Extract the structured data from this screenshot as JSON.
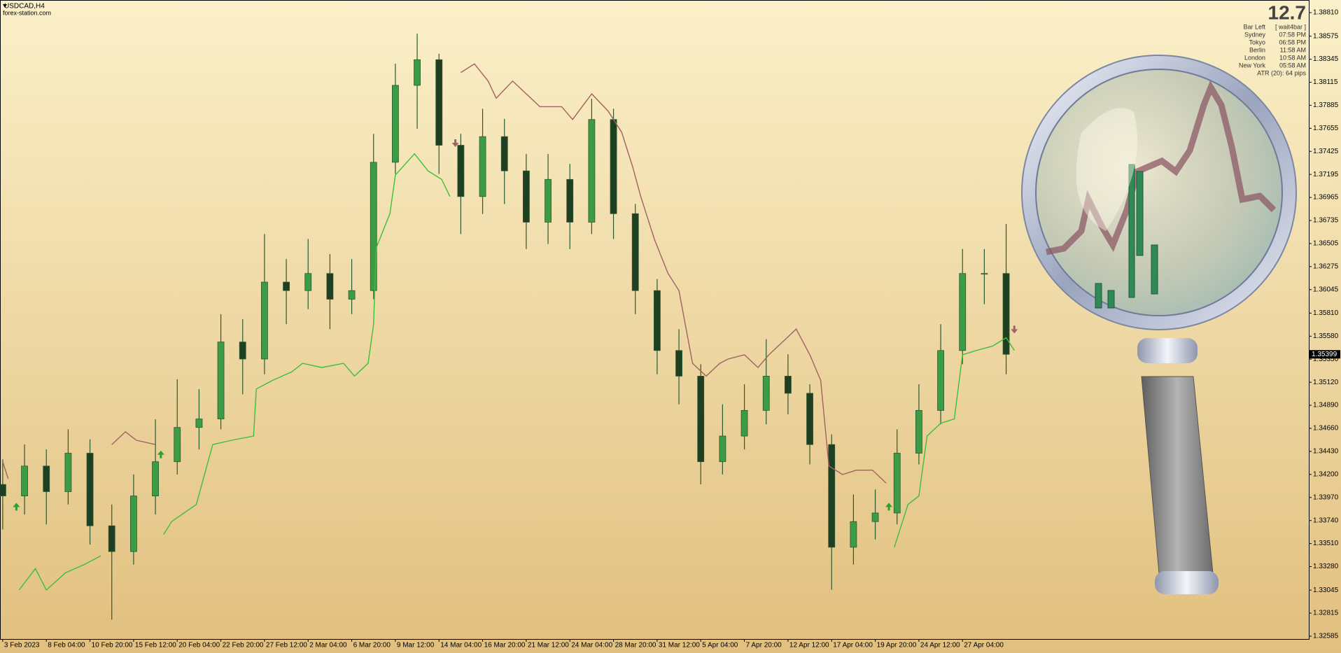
{
  "chart_data": {
    "type": "candlestick",
    "title": "USDCAD,H4",
    "subtitle": "forex-station.com",
    "xlim": [
      -1,
      479
    ],
    "ylim": [
      1.32557,
      1.38915
    ],
    "xticks": [
      {
        "value": 0,
        "label": "3 Feb 2023"
      },
      {
        "value": 16,
        "label": "8 Feb 04:00"
      },
      {
        "value": 32,
        "label": "10 Feb 20:00"
      },
      {
        "value": 48,
        "label": "15 Feb 12:00"
      },
      {
        "value": 64,
        "label": "20 Feb 04:00"
      },
      {
        "value": 80,
        "label": "22 Feb 20:00"
      },
      {
        "value": 96,
        "label": "27 Feb 12:00"
      },
      {
        "value": 112,
        "label": "2 Mar 04:00"
      },
      {
        "value": 128,
        "label": "6 Mar 20:00"
      },
      {
        "value": 144,
        "label": "9 Mar 12:00"
      },
      {
        "value": 160,
        "label": "14 Mar 04:00"
      },
      {
        "value": 176,
        "label": "16 Mar 20:00"
      },
      {
        "value": 192,
        "label": "21 Mar 12:00"
      },
      {
        "value": 208,
        "label": "24 Mar 04:00"
      },
      {
        "value": 224,
        "label": "28 Mar 20:00"
      },
      {
        "value": 240,
        "label": "31 Mar 12:00"
      },
      {
        "value": 256,
        "label": "5 Apr 04:00"
      },
      {
        "value": 272,
        "label": "7 Apr 20:00"
      },
      {
        "value": 288,
        "label": "12 Apr 12:00"
      },
      {
        "value": 304,
        "label": "17 Apr 04:00"
      },
      {
        "value": 320,
        "label": "19 Apr 20:00"
      },
      {
        "value": 336,
        "label": "24 Apr 12:00"
      },
      {
        "value": 352,
        "label": "27 Apr 04:00"
      }
    ],
    "yticks": [
      {
        "value": 1.3881,
        "label": "1.38810"
      },
      1.38575,
      1.38345,
      1.38115,
      1.37885,
      1.37655,
      1.37425,
      1.37195,
      1.36965,
      1.36735,
      1.36505,
      1.36275,
      1.36045,
      {
        "value": 1.3581,
        "label": "1.35810"
      },
      {
        "value": 1.3558,
        "label": "1.35580"
      },
      {
        "value": 1.3535,
        "label": "1.35350"
      },
      {
        "value": 1.3512,
        "label": "1.35120"
      },
      {
        "value": 1.3489,
        "label": "1.34890"
      },
      {
        "value": 1.3466,
        "label": "1.34660"
      },
      {
        "value": 1.3443,
        "label": "1.34430"
      },
      {
        "value": 1.342,
        "label": "1.34200"
      },
      {
        "value": 1.3397,
        "label": "1.33970"
      },
      {
        "value": 1.3374,
        "label": "1.33740"
      },
      {
        "value": 1.3351,
        "label": "1.33510"
      },
      {
        "value": 1.3328,
        "label": "1.33280"
      },
      1.33045,
      1.32815,
      1.32585
    ],
    "grid": false,
    "last_price": 1.35399,
    "candles": {
      "up_color": "#3c9c46",
      "down_color": "#1f3f22",
      "wick_color": "#2b5a2e",
      "x": [
        0,
        8,
        16,
        24,
        32,
        40,
        48,
        56,
        64,
        72,
        80,
        88,
        96,
        104,
        112,
        120,
        128,
        136,
        144,
        152,
        160,
        168,
        176,
        184,
        192,
        200,
        208,
        216,
        224,
        232,
        240,
        248,
        256,
        264,
        272,
        280,
        288,
        296,
        304,
        312,
        320,
        328,
        336,
        344,
        352,
        360,
        368
      ],
      "open": [
        1.341,
        1.33985,
        1.34284,
        1.34028,
        1.34412,
        1.33687,
        1.3343,
        1.33985,
        1.34327,
        1.34669,
        1.34754,
        1.35522,
        1.35352,
        1.3612,
        1.36035,
        1.36206,
        1.35949,
        1.36035,
        1.37316,
        1.38084,
        1.3834,
        1.37486,
        1.36974,
        1.37572,
        1.3723,
        1.36718,
        1.37145,
        1.36718,
        1.37743,
        1.36803,
        1.36035,
        1.35437,
        1.35181,
        1.34327,
        1.34583,
        1.34839,
        1.35181,
        1.3501,
        1.34498,
        1.33473,
        1.33729,
        1.33815,
        1.34412,
        1.34839,
        1.35437,
        1.36206,
        1.36206
      ],
      "high": [
        1.3435,
        1.345,
        1.3445,
        1.3465,
        1.3455,
        1.339,
        1.342,
        1.3475,
        1.3515,
        1.3505,
        1.358,
        1.3575,
        1.366,
        1.3635,
        1.3655,
        1.364,
        1.3635,
        1.376,
        1.383,
        1.386,
        1.384,
        1.376,
        1.3785,
        1.3775,
        1.374,
        1.374,
        1.373,
        1.3795,
        1.3785,
        1.369,
        1.3615,
        1.3565,
        1.353,
        1.349,
        1.351,
        1.3555,
        1.354,
        1.351,
        1.346,
        1.34,
        1.3405,
        1.3465,
        1.351,
        1.357,
        1.3645,
        1.3645,
        1.367
      ],
      "low": [
        1.3365,
        1.338,
        1.337,
        1.339,
        1.335,
        1.3275,
        1.333,
        1.338,
        1.342,
        1.3445,
        1.3465,
        1.35,
        1.352,
        1.357,
        1.3585,
        1.3565,
        1.358,
        1.3595,
        1.372,
        1.3765,
        1.372,
        1.366,
        1.368,
        1.369,
        1.3645,
        1.365,
        1.3645,
        1.366,
        1.3655,
        1.358,
        1.352,
        1.349,
        1.341,
        1.342,
        1.3445,
        1.347,
        1.348,
        1.343,
        1.3305,
        1.333,
        1.3355,
        1.337,
        1.343,
        1.347,
        1.353,
        1.359,
        1.352
      ],
      "close": [
        1.33985,
        1.34284,
        1.34028,
        1.34412,
        1.33687,
        1.3343,
        1.33985,
        1.34327,
        1.34669,
        1.34754,
        1.35522,
        1.35352,
        1.3612,
        1.36035,
        1.36206,
        1.35949,
        1.36035,
        1.37316,
        1.38084,
        1.3834,
        1.37486,
        1.36974,
        1.37572,
        1.3723,
        1.36718,
        1.37145,
        1.36718,
        1.37743,
        1.36803,
        1.36035,
        1.35437,
        1.35181,
        1.34327,
        1.34583,
        1.34839,
        1.35181,
        1.3501,
        1.34498,
        1.33473,
        1.33729,
        1.33815,
        1.34412,
        1.34839,
        1.35437,
        1.36206,
        1.36206,
        1.35399
      ]
    },
    "lines": [
      {
        "color": "#3cbf3c",
        "x": [
          6,
          12,
          16,
          23,
          30,
          36,
          40,
          59,
          62,
          71,
          77,
          84,
          92,
          93,
          99,
          106,
          110,
          117,
          125,
          129,
          134,
          136,
          137,
          142,
          144,
          151,
          156,
          161,
          164,
          200,
          327,
          332,
          336,
          339,
          344,
          349,
          352,
          357,
          363,
          368,
          371
        ],
        "values": [
          1.33046,
          1.3326,
          1.33046,
          1.33217,
          1.33302,
          1.33388,
          null,
          1.33601,
          1.3373,
          1.339,
          1.34498,
          1.34541,
          1.34583,
          1.35053,
          1.35139,
          1.35224,
          1.35309,
          1.35267,
          1.35309,
          1.35181,
          1.35309,
          1.35693,
          1.36462,
          1.36803,
          1.37188,
          1.37401,
          1.3723,
          1.37145,
          1.36974,
          null,
          1.33473,
          1.339,
          1.33985,
          1.34583,
          1.34711,
          1.34754,
          1.35394,
          1.35437,
          1.3548,
          1.35565,
          1.35437
        ]
      },
      {
        "color": "#a06262",
        "x": [
          0,
          2,
          20,
          40,
          45,
          49,
          56,
          100,
          168,
          173,
          178,
          181,
          187,
          192,
          197,
          205,
          209,
          216,
          222,
          227,
          231,
          234,
          239,
          244,
          248,
          253,
          258,
          263,
          266,
          272,
          277,
          281,
          286,
          291,
          296,
          300,
          303,
          308,
          313,
          319,
          324
        ],
        "values": [
          1.34327,
          1.34156,
          null,
          1.34498,
          1.34626,
          1.34541,
          1.34498,
          null,
          1.38212,
          1.38298,
          1.38127,
          1.37956,
          1.38127,
          1.37999,
          1.37871,
          1.37871,
          1.37743,
          1.37999,
          1.37828,
          1.37615,
          1.37273,
          1.36974,
          1.36547,
          1.36206,
          1.36035,
          1.35309,
          1.35181,
          1.35309,
          1.35352,
          1.35394,
          1.35267,
          1.35394,
          1.35522,
          1.35651,
          1.35394,
          1.35139,
          1.34284,
          1.34199,
          1.34242,
          1.34242,
          1.34114
        ]
      }
    ],
    "signals": [
      {
        "color": "#2e9e2e",
        "direction": "up",
        "x": [
          5,
          58,
          325
        ],
        "values": [
          1.33917,
          1.34438,
          1.33917
        ]
      },
      {
        "color": "#a06262",
        "direction": "down",
        "x": [
          166,
          371
        ],
        "values": [
          1.37469,
          1.35608
        ]
      }
    ]
  },
  "info_panel": {
    "value": "12.7",
    "rows": [
      [
        "Bar Left",
        "[ wait4bar ]"
      ],
      [
        "Sydney",
        "07:58 PM"
      ],
      [
        "Tokyo",
        "06:58 PM"
      ],
      [
        "Berlin",
        "11:58 AM"
      ],
      [
        "London",
        "10:58 AM"
      ],
      [
        "New York",
        "05:58 AM"
      ]
    ],
    "atr": "ATR (20): 64 pips"
  }
}
